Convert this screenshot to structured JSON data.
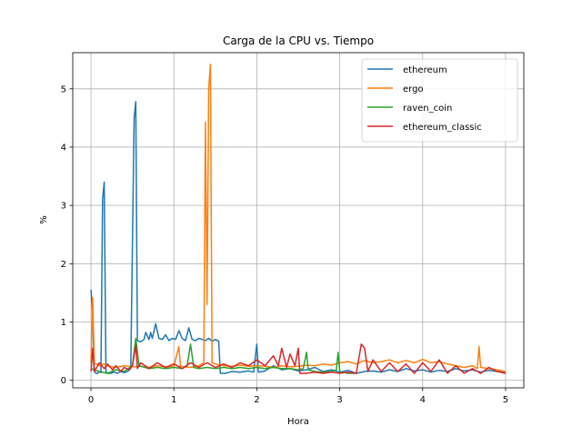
{
  "chart_data": {
    "type": "line",
    "title": "Carga de la CPU vs. Tiempo",
    "xlabel": "Hora",
    "ylabel": "%",
    "xlim": [
      -0.22,
      5.22
    ],
    "ylim": [
      -0.13,
      5.62
    ],
    "xticks": [
      0,
      1,
      2,
      3,
      4,
      5
    ],
    "yticks": [
      0,
      1,
      2,
      3,
      4,
      5
    ],
    "grid": true,
    "legend_position": "top-right",
    "series": [
      {
        "name": "ethereum",
        "color": "#1f77b4",
        "points": [
          [
            0.0,
            1.55
          ],
          [
            0.02,
            1.1
          ],
          [
            0.04,
            0.15
          ],
          [
            0.06,
            0.12
          ],
          [
            0.08,
            0.12
          ],
          [
            0.1,
            0.15
          ],
          [
            0.12,
            0.13
          ],
          [
            0.14,
            3.1
          ],
          [
            0.16,
            3.4
          ],
          [
            0.18,
            0.15
          ],
          [
            0.2,
            0.12
          ],
          [
            0.24,
            0.12
          ],
          [
            0.28,
            0.14
          ],
          [
            0.32,
            0.12
          ],
          [
            0.36,
            0.15
          ],
          [
            0.4,
            0.13
          ],
          [
            0.44,
            0.15
          ],
          [
            0.48,
            0.2
          ],
          [
            0.52,
            4.5
          ],
          [
            0.54,
            4.78
          ],
          [
            0.56,
            0.68
          ],
          [
            0.6,
            0.66
          ],
          [
            0.64,
            0.7
          ],
          [
            0.66,
            0.82
          ],
          [
            0.7,
            0.7
          ],
          [
            0.72,
            0.82
          ],
          [
            0.74,
            0.72
          ],
          [
            0.78,
            0.97
          ],
          [
            0.82,
            0.72
          ],
          [
            0.86,
            0.7
          ],
          [
            0.9,
            0.78
          ],
          [
            0.94,
            0.68
          ],
          [
            0.98,
            0.72
          ],
          [
            1.02,
            0.7
          ],
          [
            1.06,
            0.85
          ],
          [
            1.1,
            0.72
          ],
          [
            1.14,
            0.68
          ],
          [
            1.18,
            0.9
          ],
          [
            1.22,
            0.7
          ],
          [
            1.26,
            0.68
          ],
          [
            1.3,
            0.72
          ],
          [
            1.34,
            0.7
          ],
          [
            1.38,
            0.68
          ],
          [
            1.42,
            0.72
          ],
          [
            1.46,
            0.67
          ],
          [
            1.5,
            0.7
          ],
          [
            1.54,
            0.67
          ],
          [
            1.56,
            0.12
          ],
          [
            1.62,
            0.12
          ],
          [
            1.7,
            0.15
          ],
          [
            1.8,
            0.14
          ],
          [
            1.9,
            0.16
          ],
          [
            1.96,
            0.14
          ],
          [
            2.0,
            0.62
          ],
          [
            2.02,
            0.14
          ],
          [
            2.1,
            0.16
          ],
          [
            2.2,
            0.25
          ],
          [
            2.3,
            0.18
          ],
          [
            2.4,
            0.2
          ],
          [
            2.5,
            0.16
          ],
          [
            2.6,
            0.18
          ],
          [
            2.7,
            0.22
          ],
          [
            2.8,
            0.15
          ],
          [
            2.9,
            0.18
          ],
          [
            3.0,
            0.14
          ],
          [
            3.1,
            0.17
          ],
          [
            3.2,
            0.12
          ],
          [
            3.3,
            0.15
          ],
          [
            3.4,
            0.16
          ],
          [
            3.5,
            0.14
          ],
          [
            3.6,
            0.18
          ],
          [
            3.7,
            0.15
          ],
          [
            3.8,
            0.2
          ],
          [
            3.9,
            0.16
          ],
          [
            4.0,
            0.18
          ],
          [
            4.1,
            0.14
          ],
          [
            4.2,
            0.17
          ],
          [
            4.3,
            0.15
          ],
          [
            4.4,
            0.2
          ],
          [
            4.5,
            0.16
          ],
          [
            4.6,
            0.18
          ],
          [
            4.7,
            0.14
          ],
          [
            4.8,
            0.17
          ],
          [
            4.9,
            0.15
          ],
          [
            5.0,
            0.14
          ]
        ]
      },
      {
        "name": "ergo",
        "color": "#ff7f0e",
        "points": [
          [
            0.0,
            0.3
          ],
          [
            0.02,
            1.42
          ],
          [
            0.04,
            0.3
          ],
          [
            0.1,
            0.25
          ],
          [
            0.16,
            0.28
          ],
          [
            0.2,
            0.24
          ],
          [
            0.3,
            0.22
          ],
          [
            0.4,
            0.25
          ],
          [
            0.5,
            0.23
          ],
          [
            0.6,
            0.24
          ],
          [
            0.7,
            0.22
          ],
          [
            0.8,
            0.25
          ],
          [
            0.9,
            0.23
          ],
          [
            1.0,
            0.24
          ],
          [
            1.06,
            0.58
          ],
          [
            1.08,
            0.24
          ],
          [
            1.2,
            0.22
          ],
          [
            1.3,
            0.25
          ],
          [
            1.36,
            0.3
          ],
          [
            1.38,
            4.43
          ],
          [
            1.4,
            1.3
          ],
          [
            1.42,
            5.0
          ],
          [
            1.44,
            5.42
          ],
          [
            1.46,
            0.3
          ],
          [
            1.5,
            0.28
          ],
          [
            1.6,
            0.25
          ],
          [
            1.7,
            0.24
          ],
          [
            1.8,
            0.26
          ],
          [
            1.9,
            0.24
          ],
          [
            2.0,
            0.25
          ],
          [
            2.1,
            0.24
          ],
          [
            2.2,
            0.22
          ],
          [
            2.3,
            0.25
          ],
          [
            2.4,
            0.23
          ],
          [
            2.5,
            0.24
          ],
          [
            2.6,
            0.26
          ],
          [
            2.7,
            0.25
          ],
          [
            2.8,
            0.28
          ],
          [
            2.9,
            0.26
          ],
          [
            3.0,
            0.3
          ],
          [
            3.1,
            0.32
          ],
          [
            3.2,
            0.28
          ],
          [
            3.3,
            0.34
          ],
          [
            3.4,
            0.3
          ],
          [
            3.5,
            0.32
          ],
          [
            3.6,
            0.35
          ],
          [
            3.7,
            0.3
          ],
          [
            3.8,
            0.34
          ],
          [
            3.9,
            0.3
          ],
          [
            4.0,
            0.36
          ],
          [
            4.1,
            0.3
          ],
          [
            4.2,
            0.32
          ],
          [
            4.3,
            0.28
          ],
          [
            4.4,
            0.25
          ],
          [
            4.5,
            0.22
          ],
          [
            4.6,
            0.25
          ],
          [
            4.66,
            0.2
          ],
          [
            4.68,
            0.58
          ],
          [
            4.7,
            0.22
          ],
          [
            4.8,
            0.2
          ],
          [
            4.9,
            0.18
          ],
          [
            5.0,
            0.15
          ]
        ]
      },
      {
        "name": "raven_coin",
        "color": "#2ca02c",
        "points": [
          [
            0.0,
            0.2
          ],
          [
            0.1,
            0.15
          ],
          [
            0.2,
            0.12
          ],
          [
            0.3,
            0.18
          ],
          [
            0.4,
            0.15
          ],
          [
            0.5,
            0.25
          ],
          [
            0.54,
            0.72
          ],
          [
            0.58,
            0.25
          ],
          [
            0.7,
            0.2
          ],
          [
            0.8,
            0.22
          ],
          [
            0.9,
            0.2
          ],
          [
            1.0,
            0.22
          ],
          [
            1.1,
            0.2
          ],
          [
            1.16,
            0.25
          ],
          [
            1.2,
            0.62
          ],
          [
            1.24,
            0.22
          ],
          [
            1.3,
            0.2
          ],
          [
            1.4,
            0.22
          ],
          [
            1.5,
            0.2
          ],
          [
            1.6,
            0.22
          ],
          [
            1.7,
            0.2
          ],
          [
            1.8,
            0.22
          ],
          [
            1.9,
            0.2
          ],
          [
            2.0,
            0.22
          ],
          [
            2.1,
            0.2
          ],
          [
            2.2,
            0.22
          ],
          [
            2.3,
            0.2
          ],
          [
            2.4,
            0.2
          ],
          [
            2.5,
            0.18
          ],
          [
            2.56,
            0.2
          ],
          [
            2.6,
            0.48
          ],
          [
            2.62,
            0.18
          ],
          [
            2.7,
            0.15
          ],
          [
            2.8,
            0.14
          ],
          [
            2.9,
            0.15
          ],
          [
            2.96,
            0.18
          ],
          [
            2.98,
            0.48
          ],
          [
            3.0,
            0.15
          ],
          [
            3.1,
            0.12
          ],
          [
            3.2,
            0.12
          ]
        ]
      },
      {
        "name": "ethereum_classic",
        "color": "#d62728",
        "points": [
          [
            0.0,
            0.15
          ],
          [
            0.02,
            0.55
          ],
          [
            0.04,
            0.15
          ],
          [
            0.1,
            0.3
          ],
          [
            0.16,
            0.2
          ],
          [
            0.2,
            0.28
          ],
          [
            0.26,
            0.18
          ],
          [
            0.3,
            0.25
          ],
          [
            0.36,
            0.15
          ],
          [
            0.4,
            0.22
          ],
          [
            0.46,
            0.18
          ],
          [
            0.5,
            0.25
          ],
          [
            0.54,
            0.6
          ],
          [
            0.56,
            0.2
          ],
          [
            0.6,
            0.3
          ],
          [
            0.7,
            0.2
          ],
          [
            0.8,
            0.3
          ],
          [
            0.9,
            0.22
          ],
          [
            1.0,
            0.28
          ],
          [
            1.1,
            0.2
          ],
          [
            1.2,
            0.3
          ],
          [
            1.3,
            0.22
          ],
          [
            1.4,
            0.3
          ],
          [
            1.5,
            0.22
          ],
          [
            1.6,
            0.28
          ],
          [
            1.7,
            0.22
          ],
          [
            1.8,
            0.3
          ],
          [
            1.9,
            0.25
          ],
          [
            2.0,
            0.35
          ],
          [
            2.1,
            0.25
          ],
          [
            2.2,
            0.42
          ],
          [
            2.26,
            0.25
          ],
          [
            2.3,
            0.55
          ],
          [
            2.36,
            0.22
          ],
          [
            2.4,
            0.45
          ],
          [
            2.46,
            0.25
          ],
          [
            2.5,
            0.55
          ],
          [
            2.52,
            0.12
          ],
          [
            2.6,
            0.12
          ],
          [
            2.7,
            0.14
          ],
          [
            2.8,
            0.12
          ],
          [
            2.9,
            0.14
          ],
          [
            3.0,
            0.12
          ],
          [
            3.1,
            0.14
          ],
          [
            3.2,
            0.12
          ],
          [
            3.26,
            0.62
          ],
          [
            3.3,
            0.55
          ],
          [
            3.34,
            0.15
          ],
          [
            3.4,
            0.35
          ],
          [
            3.5,
            0.15
          ],
          [
            3.6,
            0.3
          ],
          [
            3.7,
            0.15
          ],
          [
            3.8,
            0.28
          ],
          [
            3.9,
            0.12
          ],
          [
            4.0,
            0.3
          ],
          [
            4.1,
            0.15
          ],
          [
            4.2,
            0.35
          ],
          [
            4.3,
            0.12
          ],
          [
            4.4,
            0.25
          ],
          [
            4.5,
            0.12
          ],
          [
            4.6,
            0.2
          ],
          [
            4.7,
            0.12
          ],
          [
            4.8,
            0.22
          ],
          [
            4.9,
            0.15
          ],
          [
            5.0,
            0.12
          ]
        ]
      }
    ]
  }
}
